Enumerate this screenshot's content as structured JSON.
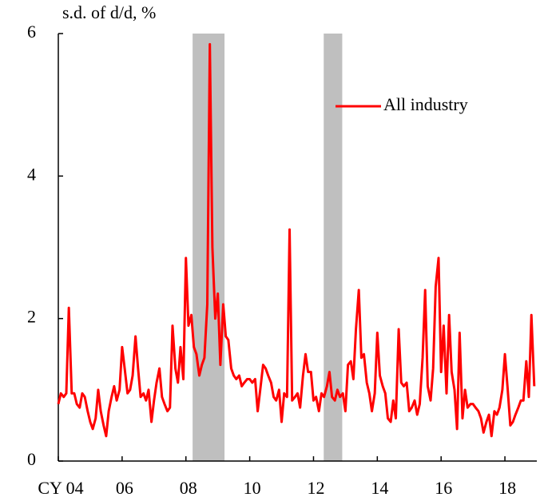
{
  "chart_data": {
    "type": "line",
    "y_label": "s.d. of d/d, %",
    "xlim": [
      2004,
      2019
    ],
    "xticks": [
      {
        "value": 2004,
        "label": "CY 04"
      },
      {
        "value": 2006,
        "label": "06"
      },
      {
        "value": 2008,
        "label": "08"
      },
      {
        "value": 2010,
        "label": "10"
      },
      {
        "value": 2012,
        "label": "12"
      },
      {
        "value": 2014,
        "label": "14"
      },
      {
        "value": 2016,
        "label": "16"
      },
      {
        "value": 2018,
        "label": "18"
      }
    ],
    "ylim": [
      0,
      6
    ],
    "yticks": [
      0,
      2,
      4,
      6
    ],
    "shaded": [
      [
        2008.21,
        2009.21
      ],
      [
        2012.32,
        2012.9
      ]
    ],
    "shade_color": "#bfbfbf",
    "legend": "upper right",
    "x": [
      2004,
      2004.08,
      2004.17,
      2004.25,
      2004.33,
      2004.42,
      2004.5,
      2004.58,
      2004.67,
      2004.75,
      2004.83,
      2004.92,
      2005,
      2005.08,
      2005.17,
      2005.25,
      2005.33,
      2005.42,
      2005.5,
      2005.58,
      2005.67,
      2005.75,
      2005.83,
      2005.92,
      2006,
      2006.08,
      2006.17,
      2006.25,
      2006.33,
      2006.42,
      2006.5,
      2006.58,
      2006.67,
      2006.75,
      2006.83,
      2006.92,
      2007,
      2007.08,
      2007.17,
      2007.25,
      2007.33,
      2007.42,
      2007.5,
      2007.58,
      2007.67,
      2007.75,
      2007.83,
      2007.92,
      2008,
      2008.08,
      2008.17,
      2008.25,
      2008.33,
      2008.42,
      2008.5,
      2008.58,
      2008.67,
      2008.75,
      2008.83,
      2008.92,
      2009,
      2009.08,
      2009.17,
      2009.25,
      2009.33,
      2009.42,
      2009.5,
      2009.58,
      2009.67,
      2009.75,
      2009.83,
      2009.92,
      2010,
      2010.08,
      2010.17,
      2010.25,
      2010.33,
      2010.42,
      2010.5,
      2010.58,
      2010.67,
      2010.75,
      2010.83,
      2010.92,
      2011,
      2011.08,
      2011.17,
      2011.25,
      2011.33,
      2011.42,
      2011.5,
      2011.58,
      2011.67,
      2011.75,
      2011.83,
      2011.92,
      2012,
      2012.08,
      2012.17,
      2012.25,
      2012.33,
      2012.42,
      2012.5,
      2012.58,
      2012.67,
      2012.75,
      2012.83,
      2012.92,
      2013,
      2013.08,
      2013.17,
      2013.25,
      2013.33,
      2013.42,
      2013.5,
      2013.58,
      2013.67,
      2013.75,
      2013.83,
      2013.92,
      2014,
      2014.08,
      2014.17,
      2014.25,
      2014.33,
      2014.42,
      2014.5,
      2014.58,
      2014.67,
      2014.75,
      2014.83,
      2014.92,
      2015,
      2015.08,
      2015.17,
      2015.25,
      2015.33,
      2015.42,
      2015.5,
      2015.58,
      2015.67,
      2015.75,
      2015.83,
      2015.92,
      2016,
      2016.08,
      2016.17,
      2016.25,
      2016.33,
      2016.42,
      2016.5,
      2016.58,
      2016.67,
      2016.75,
      2016.83,
      2016.92,
      2017,
      2017.08,
      2017.17,
      2017.25,
      2017.33,
      2017.42,
      2017.5,
      2017.58,
      2017.67,
      2017.75,
      2017.83,
      2017.92,
      2018,
      2018.08,
      2018.17,
      2018.25,
      2018.33,
      2018.42,
      2018.5,
      2018.58,
      2018.67,
      2018.75,
      2018.83,
      2018.92
    ],
    "series": [
      {
        "name": "All industry",
        "color": "#ff0000",
        "values": [
          0.8,
          0.95,
          0.9,
          0.95,
          2.15,
          0.95,
          0.95,
          0.8,
          0.75,
          0.95,
          0.9,
          0.7,
          0.55,
          0.45,
          0.6,
          1.0,
          0.7,
          0.5,
          0.35,
          0.7,
          0.9,
          1.05,
          0.85,
          1.0,
          1.6,
          1.3,
          0.95,
          1.0,
          1.2,
          1.75,
          1.3,
          0.9,
          0.95,
          0.85,
          1.0,
          0.55,
          0.85,
          1.1,
          1.3,
          0.9,
          0.8,
          0.7,
          0.75,
          1.9,
          1.3,
          1.1,
          1.6,
          1.15,
          2.85,
          1.9,
          2.05,
          1.6,
          1.5,
          1.2,
          1.35,
          1.45,
          2.2,
          5.85,
          3.0,
          2.0,
          2.35,
          1.35,
          2.2,
          1.75,
          1.7,
          1.3,
          1.2,
          1.15,
          1.2,
          1.05,
          1.1,
          1.15,
          1.15,
          1.1,
          1.15,
          0.7,
          1.0,
          1.35,
          1.3,
          1.2,
          1.1,
          0.9,
          0.85,
          1.0,
          0.55,
          0.95,
          0.9,
          3.25,
          0.85,
          0.9,
          0.95,
          0.75,
          1.2,
          1.5,
          1.25,
          1.25,
          0.85,
          0.9,
          0.7,
          0.95,
          0.9,
          1.05,
          1.25,
          0.9,
          0.85,
          1.0,
          0.9,
          0.95,
          0.7,
          1.35,
          1.4,
          1.15,
          1.85,
          2.4,
          1.45,
          1.5,
          1.1,
          0.95,
          0.7,
          0.95,
          1.8,
          1.2,
          1.05,
          0.95,
          0.6,
          0.55,
          0.85,
          0.6,
          1.85,
          1.1,
          1.05,
          1.1,
          0.7,
          0.75,
          0.85,
          0.65,
          0.8,
          1.45,
          2.4,
          1.05,
          0.85,
          1.3,
          2.45,
          2.85,
          1.25,
          1.9,
          0.95,
          2.05,
          1.25,
          1.0,
          0.45,
          1.8,
          0.6,
          1.0,
          0.75,
          0.8,
          0.8,
          0.75,
          0.7,
          0.6,
          0.4,
          0.55,
          0.65,
          0.35,
          0.7,
          0.65,
          0.75,
          1.0,
          1.5,
          1.05,
          0.5,
          0.55,
          0.65,
          0.75,
          0.85,
          0.85,
          1.4,
          0.9,
          2.05,
          1.05
        ]
      }
    ]
  }
}
